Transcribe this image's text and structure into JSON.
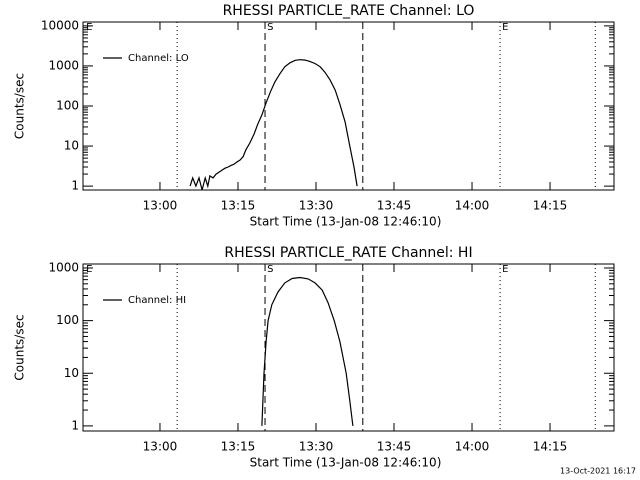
{
  "chart_data": [
    {
      "type": "line",
      "title": "RHESSI PARTICLE_RATE Channel: LO",
      "ylabel": "Counts/sec",
      "xlabel": "Start Time (13-Jan-08 12:46:10)",
      "log_y": true,
      "legend": "upper left",
      "xlim": [
        765.2,
        867.3
      ],
      "ylim": [
        0.8,
        12500
      ],
      "xticks": [
        {
          "value": 780,
          "label": "13:00"
        },
        {
          "value": 795,
          "label": "13:15"
        },
        {
          "value": 810,
          "label": "13:30"
        },
        {
          "value": 825,
          "label": "13:45"
        },
        {
          "value": 840,
          "label": "14:00"
        },
        {
          "value": 855,
          "label": "14:15"
        }
      ],
      "yticks": [
        1,
        10,
        100,
        1000,
        10000
      ],
      "vlines": [
        {
          "x": 783.3,
          "style": "dotted"
        },
        {
          "x": 800.2,
          "style": "dashed"
        },
        {
          "x": 819.0,
          "style": "dashed"
        },
        {
          "x": 845.4,
          "style": "dotted"
        },
        {
          "x": 863.7,
          "style": "dotted"
        }
      ],
      "annotations": [
        {
          "text": "E",
          "x": 765.8
        },
        {
          "text": "S",
          "x": 800.6
        },
        {
          "text": "E",
          "x": 845.8
        }
      ],
      "x": [
        785.8,
        786.3,
        786.9,
        787.5,
        788.1,
        788.7,
        789.2,
        789.6,
        790.2,
        790.8,
        791.3,
        791.9,
        792.5,
        793.1,
        793.7,
        794.2,
        794.8,
        795.4,
        796.0,
        796.5,
        797.3,
        798.1,
        798.8,
        799.6,
        800.4,
        801.2,
        802.1,
        803.1,
        804.0,
        805.0,
        806.0,
        806.9,
        807.9,
        808.8,
        809.8,
        810.8,
        811.7,
        812.7,
        813.7,
        814.6,
        815.6,
        816.5,
        817.3,
        817.9
      ],
      "series": [
        {
          "name": "Channel: LO",
          "color": "#000000",
          "values": [
            1,
            1.6,
            1,
            1.6,
            0.8,
            1.6,
            1,
            1.8,
            1.6,
            2,
            2.2,
            2.5,
            2.8,
            3,
            3.3,
            3.5,
            4,
            4.5,
            5.5,
            8,
            12,
            20,
            35,
            60,
            120,
            220,
            400,
            650,
            950,
            1200,
            1380,
            1430,
            1400,
            1300,
            1150,
            950,
            700,
            450,
            250,
            110,
            40,
            10,
            3,
            1
          ]
        }
      ]
    },
    {
      "type": "line",
      "title": "RHESSI PARTICLE_RATE Channel: HI",
      "ylabel": "Counts/sec",
      "xlabel": "Start Time (13-Jan-08 12:46:10)",
      "log_y": true,
      "legend": "upper left",
      "xlim": [
        765.2,
        867.3
      ],
      "ylim": [
        0.8,
        1190
      ],
      "xticks": [
        {
          "value": 780,
          "label": "13:00"
        },
        {
          "value": 795,
          "label": "13:15"
        },
        {
          "value": 810,
          "label": "13:30"
        },
        {
          "value": 825,
          "label": "13:45"
        },
        {
          "value": 840,
          "label": "14:00"
        },
        {
          "value": 855,
          "label": "14:15"
        }
      ],
      "yticks": [
        1,
        10,
        100,
        1000
      ],
      "vlines": [
        {
          "x": 783.3,
          "style": "dotted"
        },
        {
          "x": 800.2,
          "style": "dashed"
        },
        {
          "x": 819.0,
          "style": "dashed"
        },
        {
          "x": 845.4,
          "style": "dotted"
        },
        {
          "x": 863.7,
          "style": "dotted"
        }
      ],
      "annotations": [
        {
          "text": "E",
          "x": 765.8
        },
        {
          "text": "S",
          "x": 800.6
        },
        {
          "text": "E",
          "x": 845.8
        }
      ],
      "x": [
        799.6,
        800.0,
        800.4,
        800.8,
        801.5,
        802.7,
        804.0,
        805.4,
        806.9,
        808.5,
        809.8,
        811.2,
        812.3,
        813.5,
        814.6,
        815.8,
        816.5,
        817.1
      ],
      "series": [
        {
          "name": "Channel: HI",
          "color": "#000000",
          "values": [
            1,
            10,
            40,
            100,
            200,
            350,
            520,
            630,
            660,
            620,
            520,
            380,
            220,
            100,
            40,
            10,
            3,
            1
          ]
        }
      ]
    }
  ],
  "footer": "13-Oct-2021 16:17"
}
